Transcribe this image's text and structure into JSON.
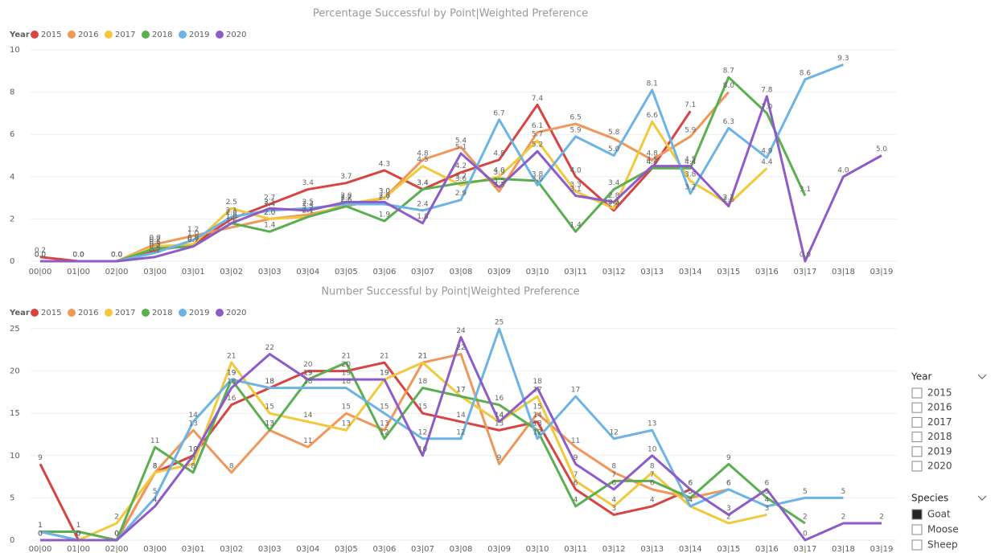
{
  "chart_data": [
    {
      "type": "line",
      "title": "Percentage Successful by Point|Weighted Preference",
      "legend_title": "Year",
      "categories": [
        "00|00",
        "01|00",
        "02|00",
        "03|00",
        "03|01",
        "03|02",
        "03|03",
        "03|04",
        "03|05",
        "03|06",
        "03|07",
        "03|08",
        "03|09",
        "03|10",
        "03|11",
        "03|12",
        "03|13",
        "03|14",
        "03|15",
        "03|16",
        "03|17",
        "03|18",
        "03|19"
      ],
      "ylim": [
        0,
        10
      ],
      "yticks": [
        0,
        2,
        4,
        6,
        8,
        10
      ],
      "grid": true,
      "series": [
        {
          "name": "2015",
          "color": "#d64541",
          "values": [
            0.2,
            0,
            0,
            0.5,
            0.8,
            2.0,
            2.7,
            3.4,
            3.7,
            4.3,
            3.4,
            4.2,
            4.8,
            7.4,
            4.0,
            2.4,
            4.4,
            7.1,
            null,
            null,
            null,
            null,
            null
          ],
          "value_labels": [
            "0.2",
            "0.0",
            "0.0",
            "0.5",
            "0.8",
            "2.0",
            "2.7",
            "3.4",
            "3.7",
            "4.3",
            "3.4",
            "4.2",
            "4.8",
            "7.4",
            "4.0",
            "2.4",
            "4.4",
            "7.1",
            null,
            null,
            null,
            null,
            null
          ]
        },
        {
          "name": "2016",
          "color": "#f0975a",
          "values": [
            0,
            0,
            0,
            0.8,
            1.2,
            1.6,
            2.0,
            2.2,
            2.6,
            3.0,
            4.8,
            5.4,
            3.3,
            6.1,
            6.5,
            5.8,
            4.8,
            5.9,
            8.0,
            null,
            null,
            null,
            null
          ],
          "value_labels": [
            "0.0",
            "0.0",
            "0.0",
            "0.8",
            "1.2",
            "1.6",
            "2.0",
            "2.2",
            "2.6",
            "3.0",
            "4.8",
            "5.4",
            "3.3",
            "6.1",
            "6.5",
            "5.8",
            "4.8",
            "5.9",
            "8.0",
            null,
            null,
            null,
            null
          ]
        },
        {
          "name": "2017",
          "color": "#f2c83c",
          "values": [
            0,
            0,
            0,
            0.7,
            0.8,
            2.5,
            2.0,
            2.1,
            2.7,
            3.0,
            4.5,
            3.6,
            4.0,
            5.7,
            3.3,
            2.5,
            6.6,
            3.8,
            2.7,
            4.4,
            null,
            null,
            null
          ],
          "value_labels": [
            "0.0",
            "0.0",
            "0.0",
            "0.7",
            "0.8",
            "2.5",
            "2.0",
            "2.1",
            "2.7",
            "3.0",
            "4.5",
            "3.6",
            "4.0",
            "5.7",
            "3.3",
            "2.5",
            "6.6",
            "3.8",
            "2.7",
            "4.4",
            null,
            null,
            null
          ]
        },
        {
          "name": "2018",
          "color": "#5aaf50",
          "values": [
            0,
            0,
            0,
            0.6,
            0.7,
            1.8,
            1.4,
            2.1,
            2.6,
            1.9,
            3.4,
            3.7,
            3.9,
            3.8,
            1.4,
            3.4,
            4.4,
            4.4,
            8.7,
            7.0,
            3.1,
            null,
            null
          ],
          "value_labels": [
            "0.0",
            "0.0",
            "0.0",
            "0.6",
            "0.7",
            "1.8",
            "1.4",
            "2.1",
            "2.6",
            "1.9",
            "3.4",
            "3.7",
            "3.9",
            "3.8",
            "1.4",
            "3.4",
            "4.4",
            "4.4",
            "8.7",
            "7.0",
            "3.1",
            null,
            null
          ]
        },
        {
          "name": "2019",
          "color": "#6cb4e4",
          "values": [
            0,
            0,
            0,
            0.4,
            1.0,
            2.1,
            2.4,
            2.5,
            2.7,
            2.7,
            2.4,
            2.9,
            6.7,
            3.6,
            5.9,
            5.0,
            8.1,
            3.2,
            6.3,
            4.9,
            8.6,
            9.3,
            null
          ],
          "value_labels": [
            "0.0",
            "0.0",
            "0.0",
            "0.4",
            "1.0",
            "2.1",
            "2.4",
            "2.5",
            "2.7",
            "2.7",
            "2.4",
            "2.9",
            "6.7",
            "3.6",
            "5.9",
            "5.0",
            "8.1",
            "3.2",
            "6.3",
            "4.9",
            "8.6",
            "9.3",
            null
          ]
        },
        {
          "name": "2020",
          "color": "#8e5cc9",
          "values": [
            0,
            0,
            0,
            0.2,
            0.7,
            1.8,
            2.5,
            2.4,
            2.8,
            2.8,
            1.8,
            5.1,
            3.5,
            5.2,
            3.1,
            2.8,
            4.5,
            4.5,
            2.6,
            7.8,
            0,
            4.0,
            5.0
          ],
          "value_labels": [
            "0.0",
            "0.0",
            "0.0",
            "0.2",
            "0.7",
            "1.8",
            "2.5",
            "2.4",
            "2.8",
            "2.8",
            "1.8",
            "5.1",
            "3.5",
            "5.2",
            "3.1",
            "2.8",
            "4.5",
            "4.5",
            "2.6",
            "7.8",
            "0.0",
            "4.0",
            "5.0"
          ]
        }
      ]
    },
    {
      "type": "line",
      "title": "Number Successful by Point|Weighted Preference",
      "legend_title": "Year",
      "categories": [
        "00|00",
        "01|00",
        "02|00",
        "03|00",
        "03|01",
        "03|02",
        "03|03",
        "03|04",
        "03|05",
        "03|06",
        "03|07",
        "03|08",
        "03|09",
        "03|10",
        "03|11",
        "03|12",
        "03|13",
        "03|14",
        "03|15",
        "03|16",
        "03|17",
        "03|18",
        "03|19"
      ],
      "ylim": [
        0,
        25
      ],
      "yticks": [
        0,
        5,
        10,
        15,
        20,
        25
      ],
      "grid": true,
      "series": [
        {
          "name": "2015",
          "color": "#d64541",
          "values": [
            9,
            0,
            0,
            8,
            10,
            16,
            18,
            20,
            20,
            21,
            15,
            14,
            13,
            14,
            6,
            3,
            4,
            6,
            null,
            null,
            null,
            null,
            null
          ]
        },
        {
          "name": "2016",
          "color": "#f0975a",
          "values": [
            0,
            0,
            0,
            8,
            13,
            8,
            13,
            11,
            15,
            13,
            21,
            22,
            9,
            15,
            11,
            8,
            6,
            5,
            6,
            null,
            null,
            null,
            null
          ]
        },
        {
          "name": "2017",
          "color": "#f2c83c",
          "values": [
            0,
            0,
            2,
            8,
            9,
            21,
            15,
            14,
            13,
            19,
            21,
            17,
            14,
            17,
            7,
            4,
            8,
            4,
            2,
            3,
            null,
            null,
            null
          ]
        },
        {
          "name": "2018",
          "color": "#5aaf50",
          "values": [
            1,
            1,
            0,
            11,
            8,
            19,
            13,
            19,
            21,
            12,
            18,
            17,
            16,
            13,
            4,
            7,
            7,
            5,
            9,
            5,
            2,
            null,
            null
          ]
        },
        {
          "name": "2019",
          "color": "#6cb4e4",
          "values": [
            1,
            0,
            0,
            5,
            14,
            19,
            18,
            18,
            18,
            15,
            12,
            12,
            25,
            12,
            17,
            12,
            13,
            4,
            6,
            4,
            5,
            5,
            null
          ]
        },
        {
          "name": "2020",
          "color": "#8e5cc9",
          "values": [
            0,
            0,
            0,
            4,
            10,
            18,
            22,
            19,
            19,
            19,
            10,
            24,
            14,
            18,
            9,
            6,
            10,
            6,
            3,
            6,
            0,
            2,
            2
          ]
        }
      ]
    }
  ],
  "slicers": [
    {
      "title": "Year",
      "items": [
        {
          "label": "2015",
          "checked": false
        },
        {
          "label": "2016",
          "checked": false
        },
        {
          "label": "2017",
          "checked": false
        },
        {
          "label": "2018",
          "checked": false
        },
        {
          "label": "2019",
          "checked": false
        },
        {
          "label": "2020",
          "checked": false
        }
      ]
    },
    {
      "title": "Species",
      "items": [
        {
          "label": "Goat",
          "checked": true
        },
        {
          "label": "Moose",
          "checked": false
        },
        {
          "label": "Sheep",
          "checked": false
        }
      ]
    }
  ]
}
